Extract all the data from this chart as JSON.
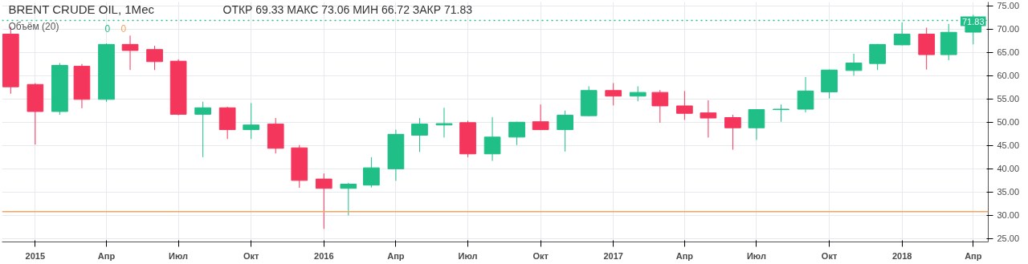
{
  "chart_data": {
    "type": "candlestick",
    "title": "BRENT CRUDE OIL, 1Мес",
    "subtitle": "ОТКР 69.33  МАКС 73.06  МИН 66.72  ЗАКР 71.83",
    "annotations": [
      "Объём (20)",
      "0",
      "0"
    ],
    "x": [
      "2014-12",
      "2015-01",
      "2015-02",
      "2015-03",
      "2015-04",
      "2015-05",
      "2015-06",
      "2015-07",
      "2015-08",
      "2015-09",
      "2015-10",
      "2015-11",
      "2015-12",
      "2016-01",
      "2016-02",
      "2016-03",
      "2016-04",
      "2016-05",
      "2016-06",
      "2016-07",
      "2016-08",
      "2016-09",
      "2016-10",
      "2016-11",
      "2016-12",
      "2017-01",
      "2017-02",
      "2017-03",
      "2017-04",
      "2017-05",
      "2017-06",
      "2017-07",
      "2017-08",
      "2017-09",
      "2017-10",
      "2017-11",
      "2017-12",
      "2018-01",
      "2018-02",
      "2018-03",
      "2018-04"
    ],
    "ohlc": [
      [
        68.9,
        70.5,
        56.1,
        57.6
      ],
      [
        58.1,
        58.4,
        45.2,
        52.3
      ],
      [
        52.3,
        62.7,
        51.6,
        62.2
      ],
      [
        62.0,
        62.5,
        53.0,
        54.9
      ],
      [
        54.9,
        66.9,
        54.4,
        66.7
      ],
      [
        66.7,
        68.6,
        61.2,
        65.4
      ],
      [
        65.6,
        66.4,
        61.2,
        63.0
      ],
      [
        63.1,
        63.5,
        51.5,
        51.7
      ],
      [
        51.7,
        54.4,
        42.5,
        53.1
      ],
      [
        53.1,
        53.3,
        46.4,
        48.4
      ],
      [
        48.4,
        54.1,
        46.4,
        49.4
      ],
      [
        49.6,
        50.9,
        43.3,
        44.4
      ],
      [
        44.5,
        45.1,
        35.9,
        37.5
      ],
      [
        37.8,
        39.0,
        27.1,
        35.8
      ],
      [
        35.8,
        37.0,
        30.0,
        36.7
      ],
      [
        36.5,
        42.5,
        36.0,
        40.2
      ],
      [
        40.0,
        48.4,
        37.4,
        47.4
      ],
      [
        47.2,
        50.9,
        43.6,
        49.6
      ],
      [
        49.4,
        53.1,
        46.7,
        49.7
      ],
      [
        49.9,
        50.3,
        42.5,
        43.2
      ],
      [
        43.2,
        51.1,
        41.7,
        46.8
      ],
      [
        46.8,
        50.1,
        45.1,
        50.0
      ],
      [
        50.1,
        53.8,
        48.3,
        48.4
      ],
      [
        48.4,
        52.5,
        43.7,
        51.5
      ],
      [
        51.4,
        57.7,
        51.3,
        56.8
      ],
      [
        56.8,
        58.4,
        53.6,
        55.6
      ],
      [
        55.6,
        57.7,
        54.5,
        56.4
      ],
      [
        56.4,
        56.9,
        49.9,
        53.5
      ],
      [
        53.5,
        56.7,
        50.5,
        51.9
      ],
      [
        52.0,
        54.7,
        46.7,
        50.9
      ],
      [
        51.0,
        51.6,
        44.1,
        48.8
      ],
      [
        48.8,
        52.8,
        46.2,
        52.7
      ],
      [
        52.7,
        53.8,
        50.1,
        52.8
      ],
      [
        52.8,
        59.7,
        52.1,
        56.7
      ],
      [
        56.5,
        61.3,
        55.1,
        61.2
      ],
      [
        61.1,
        64.7,
        60.0,
        62.7
      ],
      [
        62.6,
        66.8,
        61.2,
        66.7
      ],
      [
        66.6,
        71.4,
        66.5,
        68.9
      ],
      [
        68.9,
        70.3,
        61.3,
        64.5
      ],
      [
        64.5,
        71.1,
        63.3,
        69.3
      ],
      [
        69.33,
        73.06,
        66.72,
        71.83
      ]
    ],
    "colors": [
      "#f5365c",
      "#f5365c",
      "#1fbf87",
      "#f5365c",
      "#1fbf87",
      "#f5365c",
      "#f5365c",
      "#f5365c",
      "#1fbf87",
      "#f5365c",
      "#1fbf87",
      "#f5365c",
      "#f5365c",
      "#f5365c",
      "#1fbf87",
      "#1fbf87",
      "#1fbf87",
      "#1fbf87",
      "#1fbf87",
      "#f5365c",
      "#1fbf87",
      "#1fbf87",
      "#f5365c",
      "#1fbf87",
      "#1fbf87",
      "#f5365c",
      "#1fbf87",
      "#f5365c",
      "#f5365c",
      "#f5365c",
      "#f5365c",
      "#1fbf87",
      "#1fbf87",
      "#1fbf87",
      "#1fbf87",
      "#1fbf87",
      "#1fbf87",
      "#1fbf87",
      "#f5365c",
      "#1fbf87",
      "#1fbf87"
    ],
    "xlim": [
      "2014-11-20",
      "2018-04-20"
    ],
    "xticks": [
      {
        "value": "2015-01",
        "label": "2015"
      },
      {
        "value": "2015-04",
        "label": "Апр"
      },
      {
        "value": "2015-07",
        "label": "Июл"
      },
      {
        "value": "2015-10",
        "label": "Окт"
      },
      {
        "value": "2016-01",
        "label": "2016"
      },
      {
        "value": "2016-04",
        "label": "Апр"
      },
      {
        "value": "2016-07",
        "label": "Июл"
      },
      {
        "value": "2016-10",
        "label": "Окт"
      },
      {
        "value": "2017-01",
        "label": "2017"
      },
      {
        "value": "2017-04",
        "label": "Апр"
      },
      {
        "value": "2017-07",
        "label": "Июл"
      },
      {
        "value": "2017-10",
        "label": "Окт"
      },
      {
        "value": "2018-01",
        "label": "2018"
      },
      {
        "value": "2018-04",
        "label": "Апр"
      }
    ],
    "ylim": [
      24.3,
      75.8
    ],
    "yticks": [
      {
        "value": 25,
        "label": "25.00"
      },
      {
        "value": 30,
        "label": "30.00"
      },
      {
        "value": 35,
        "label": "35.00"
      },
      {
        "value": 40,
        "label": "40.00"
      },
      {
        "value": 45,
        "label": "45.00"
      },
      {
        "value": 50,
        "label": "50.00"
      },
      {
        "value": 55,
        "label": "55.00"
      },
      {
        "value": 60,
        "label": "60.00"
      },
      {
        "value": 65,
        "label": "65.00"
      },
      {
        "value": 70,
        "label": "70.00"
      },
      {
        "value": 75,
        "label": "75.00"
      }
    ],
    "ref_lines": [
      {
        "axis": "y",
        "value": 71.83,
        "label": "71.83",
        "color": "#1fbf87",
        "line_style": "dotted"
      },
      {
        "axis": "y",
        "value": 30.8,
        "label": null,
        "color": "#f7a35c",
        "line_style": "solid"
      }
    ],
    "grid": true
  }
}
